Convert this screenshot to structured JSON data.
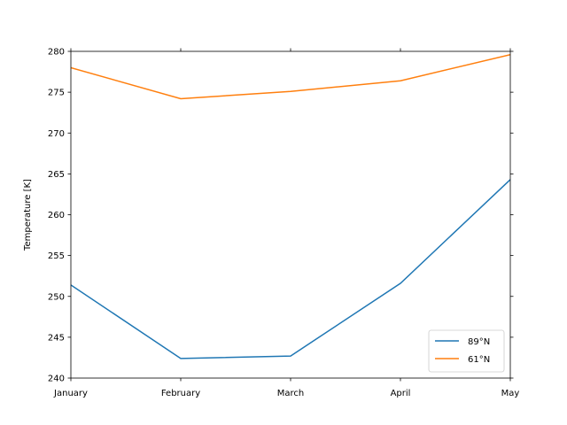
{
  "chart_data": {
    "type": "line",
    "categories": [
      "January",
      "February",
      "March",
      "April",
      "May"
    ],
    "xlabel": "",
    "ylabel": "Temperature [K]",
    "ylim": [
      240,
      280
    ],
    "yticks": [
      240,
      245,
      250,
      255,
      260,
      265,
      270,
      275,
      280
    ],
    "grid": false,
    "legend_position": "lower-right",
    "series": [
      {
        "name": "89°N",
        "color": "#1f77b4",
        "values": [
          251.4,
          242.4,
          242.7,
          251.6,
          264.3
        ]
      },
      {
        "name": "61°N",
        "color": "#ff7f0e",
        "values": [
          278.0,
          274.2,
          275.1,
          276.4,
          279.6
        ]
      }
    ]
  }
}
